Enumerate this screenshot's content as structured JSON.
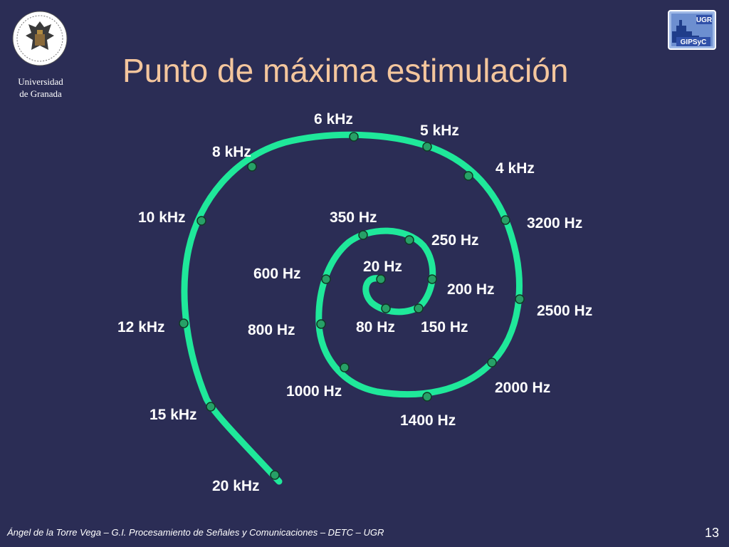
{
  "header": {
    "title": "Punto de máxima estimulación",
    "university_line1": "Universidad",
    "university_line2": "de Granada",
    "right_logo_top": "UGR",
    "right_logo_bottom": "GIPSyC"
  },
  "diagram": {
    "labels": [
      "20 Hz",
      "80 Hz",
      "150 Hz",
      "200 Hz",
      "250 Hz",
      "350 Hz",
      "600 Hz",
      "800 Hz",
      "1000 Hz",
      "1400 Hz",
      "2000 Hz",
      "2500 Hz",
      "3200 Hz",
      "4 kHz",
      "5 kHz",
      "6 kHz",
      "8 kHz",
      "10 kHz",
      "12 kHz",
      "15 kHz",
      "20 kHz"
    ]
  },
  "footer": {
    "credit": "Ángel de la Torre Vega – G.I. Procesamiento de Señales y Comunicaciones – DETC – UGR",
    "page": "13"
  },
  "colors": {
    "background": "#2b2d55",
    "spiral": "#1fe89a",
    "marker": "#27a067",
    "title": "#f4c69d"
  }
}
